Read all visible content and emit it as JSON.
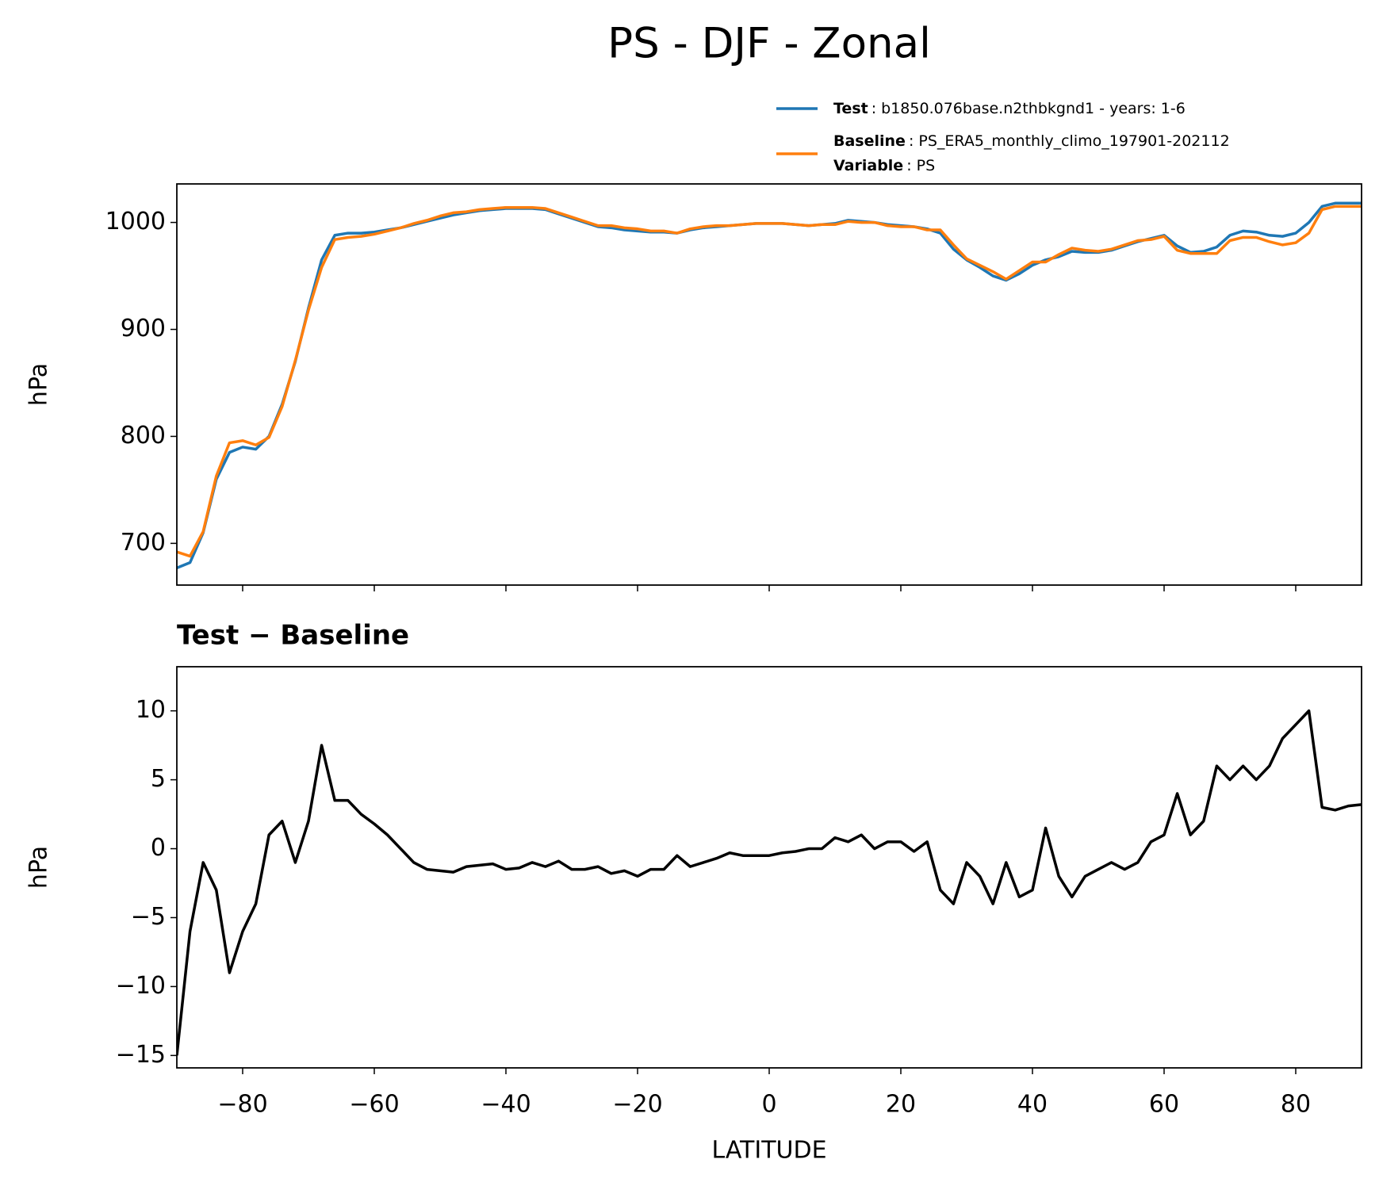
{
  "title": "PS - DJF - Zonal",
  "chart_data": [
    {
      "type": "line",
      "ylabel": "hPa",
      "x": [
        -90,
        -88,
        -86,
        -84,
        -82,
        -80,
        -78,
        -76,
        -74,
        -72,
        -70,
        -68,
        -66,
        -64,
        -62,
        -60,
        -58,
        -56,
        -54,
        -52,
        -50,
        -48,
        -46,
        -44,
        -42,
        -40,
        -38,
        -36,
        -34,
        -32,
        -30,
        -28,
        -26,
        -24,
        -22,
        -20,
        -18,
        -16,
        -14,
        -12,
        -10,
        -8,
        -6,
        -4,
        -2,
        0,
        2,
        4,
        6,
        8,
        10,
        12,
        14,
        16,
        18,
        20,
        22,
        24,
        26,
        28,
        30,
        32,
        34,
        36,
        38,
        40,
        42,
        44,
        46,
        48,
        50,
        52,
        54,
        56,
        58,
        60,
        62,
        64,
        66,
        68,
        70,
        72,
        74,
        76,
        78,
        80,
        82,
        84,
        86,
        88,
        90
      ],
      "series": [
        {
          "name": "Test",
          "label": ": b1850.076base.n2thbkgnd1 - years: 1-6",
          "color": "#1f77b4",
          "values": [
            677,
            682,
            710,
            760,
            785,
            790,
            788,
            800,
            830,
            870,
            920,
            965,
            988,
            990,
            990,
            991,
            993,
            995,
            998,
            1001,
            1004,
            1007,
            1009,
            1011,
            1012,
            1013,
            1013,
            1013,
            1012,
            1008,
            1004,
            1000,
            996,
            995,
            993,
            992,
            991,
            991,
            990,
            993,
            995,
            996,
            997,
            998,
            999,
            999,
            999,
            998,
            997,
            998,
            999,
            1002,
            1001,
            1000,
            998,
            997,
            996,
            994,
            990,
            975,
            965,
            958,
            950,
            946,
            952,
            960,
            965,
            968,
            973,
            972,
            972,
            974,
            978,
            982,
            985,
            988,
            978,
            972,
            973,
            977,
            988,
            992,
            991,
            988,
            987,
            990,
            1000,
            1015,
            1018,
            1018,
            1018
          ]
        },
        {
          "name": "Baseline",
          "label": ": PS_ERA5_monthly_climo_197901-202112",
          "color": "#ff7f0e",
          "values": [
            692,
            688,
            711,
            763,
            794,
            796,
            792,
            799,
            828,
            871,
            918,
            958,
            984,
            986,
            987,
            989,
            992,
            995,
            999,
            1002,
            1006,
            1009,
            1010,
            1012,
            1013,
            1014,
            1014,
            1014,
            1013,
            1009,
            1005,
            1001,
            997,
            997,
            995,
            994,
            992,
            992,
            990,
            994,
            996,
            997,
            997,
            998,
            999,
            999,
            999,
            998,
            997,
            998,
            998,
            1001,
            1000,
            1000,
            997,
            996,
            996,
            993,
            993,
            979,
            966,
            960,
            954,
            947,
            955,
            963,
            963,
            970,
            976,
            974,
            973,
            975,
            979,
            983,
            984,
            987,
            974,
            971,
            971,
            971,
            983,
            986,
            986,
            982,
            979,
            981,
            990,
            1012,
            1015,
            1015,
            1015
          ]
        }
      ],
      "legend_note": {
        "name": "Variable",
        "label": ": PS"
      },
      "xlim": [
        -90,
        90
      ],
      "xticks": [
        -80,
        -60,
        -40,
        -20,
        0,
        20,
        40,
        60,
        80
      ],
      "ylim": [
        661,
        1036
      ],
      "yticks": [
        700,
        800,
        900,
        1000
      ]
    },
    {
      "type": "line",
      "title": "Test − Baseline",
      "ylabel": "hPa",
      "xlabel": "LATITUDE",
      "x": [
        -90,
        -88,
        -86,
        -84,
        -82,
        -80,
        -78,
        -76,
        -74,
        -72,
        -70,
        -68,
        -66,
        -64,
        -62,
        -60,
        -58,
        -56,
        -54,
        -52,
        -50,
        -48,
        -46,
        -44,
        -42,
        -40,
        -38,
        -36,
        -34,
        -32,
        -30,
        -28,
        -26,
        -24,
        -22,
        -20,
        -18,
        -16,
        -14,
        -12,
        -10,
        -8,
        -6,
        -4,
        -2,
        0,
        2,
        4,
        6,
        8,
        10,
        12,
        14,
        16,
        18,
        20,
        22,
        24,
        26,
        28,
        30,
        32,
        34,
        36,
        38,
        40,
        42,
        44,
        46,
        48,
        50,
        52,
        54,
        56,
        58,
        60,
        62,
        64,
        66,
        68,
        70,
        72,
        74,
        76,
        78,
        80,
        82,
        84,
        86,
        88,
        90
      ],
      "series": [
        {
          "color": "#000000",
          "values": [
            -15,
            -6,
            -1,
            -3,
            -9,
            -6,
            -4,
            1,
            2,
            -1,
            2,
            7.5,
            3.5,
            3.5,
            2.5,
            1.8,
            1,
            0,
            -1,
            -1.5,
            -1.6,
            -1.7,
            -1.3,
            -1.2,
            -1.1,
            -1.5,
            -1.4,
            -1,
            -1.3,
            -0.9,
            -1.5,
            -1.5,
            -1.3,
            -1.8,
            -1.6,
            -2,
            -1.5,
            -1.5,
            -0.5,
            -1.3,
            -1,
            -0.7,
            -0.3,
            -0.5,
            -0.5,
            -0.5,
            -0.3,
            -0.2,
            0,
            0,
            0.8,
            0.5,
            1,
            0,
            0.5,
            0.5,
            -0.2,
            0.5,
            -3,
            -4,
            -1,
            -2,
            -4,
            -1,
            -3.5,
            -3,
            1.5,
            -2,
            -3.5,
            -2,
            -1.5,
            -1,
            -1.5,
            -1,
            0.5,
            1,
            4,
            1,
            2,
            6,
            5,
            6,
            5,
            6,
            8,
            9,
            10,
            3,
            2.8,
            3.1,
            3.2
          ]
        }
      ],
      "xlim": [
        -90,
        90
      ],
      "xticks": [
        {
          "value": -80,
          "label": "−80"
        },
        {
          "value": -60,
          "label": "−60"
        },
        {
          "value": -40,
          "label": "−40"
        },
        {
          "value": -20,
          "label": "−20"
        },
        0,
        20,
        40,
        60,
        80
      ],
      "ylim": [
        -15.9,
        13.2
      ],
      "yticks": [
        {
          "value": -15,
          "label": "−15"
        },
        {
          "value": -10,
          "label": "−10"
        },
        {
          "value": -5,
          "label": "−5"
        },
        0,
        5,
        10
      ]
    }
  ]
}
